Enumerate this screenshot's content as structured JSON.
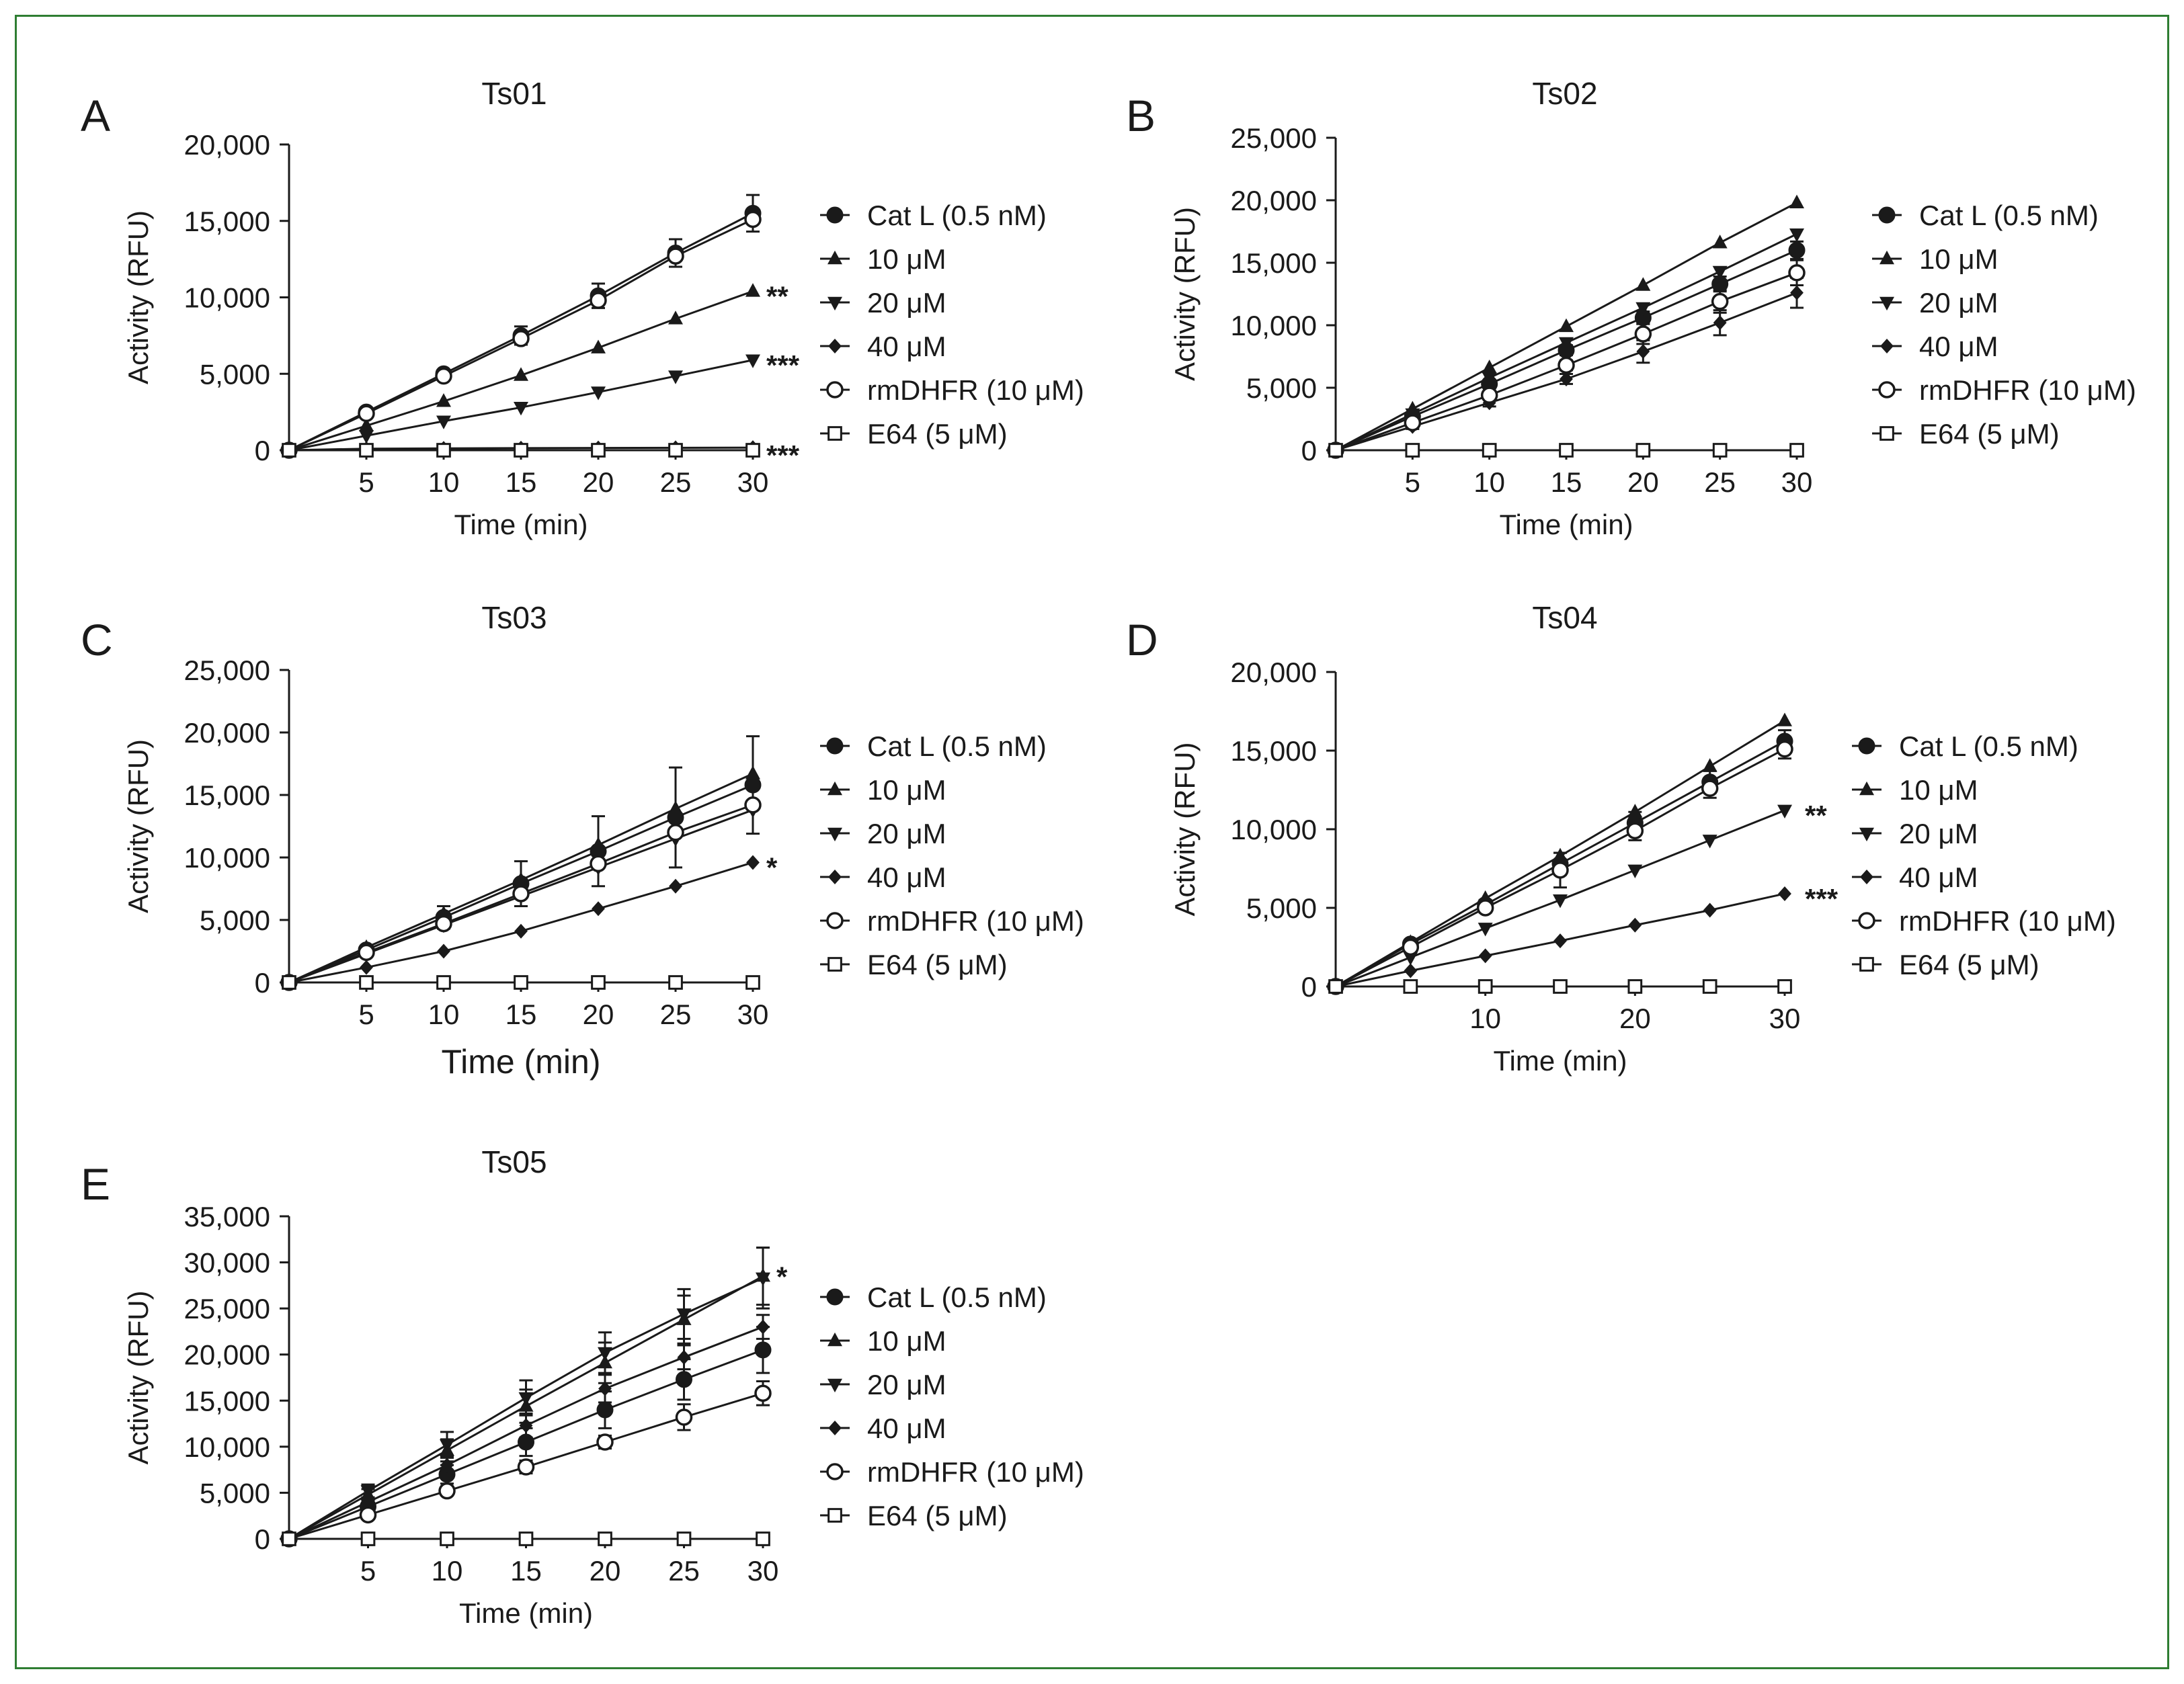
{
  "figure_border_color": "#2e7d32",
  "legend_labels": [
    "Cat L (0.5 nM)",
    "10 μM",
    "20 μM",
    "40 μM",
    "rmDHFR (10 μM)",
    "E64 (5 μM)"
  ],
  "legend_markers": [
    "filled-circle",
    "filled-triangle-up",
    "filled-triangle-down",
    "filled-diamond",
    "open-circle",
    "open-square"
  ],
  "chart_data": [
    {
      "panel": "A",
      "title": "Ts01",
      "type": "line",
      "xlabel": "Time (min)",
      "ylabel": "Activity (RFU)",
      "xlim": [
        0,
        30
      ],
      "xticks": [
        "5",
        "10",
        "15",
        "20",
        "25",
        "30"
      ],
      "xtick_values": [
        5,
        10,
        15,
        20,
        25,
        30
      ],
      "ylim": [
        0,
        20000
      ],
      "yticks": [
        "0",
        "5,000",
        "10,000",
        "15,000",
        "20,000"
      ],
      "ytick_values": [
        0,
        5000,
        10000,
        15000,
        20000
      ],
      "x": [
        0,
        5,
        10,
        15,
        20,
        25,
        30
      ],
      "series": [
        {
          "name": "Cat L (0.5 nM)",
          "values": [
            0,
            2500,
            5000,
            7500,
            10100,
            12900,
            15500
          ],
          "err": [
            0,
            150,
            200,
            600,
            800,
            900,
            1200
          ]
        },
        {
          "name": "10 μM",
          "values": [
            0,
            1600,
            3200,
            4900,
            6700,
            8600,
            10400
          ],
          "err": [
            0,
            0,
            0,
            0,
            0,
            0,
            0
          ]
        },
        {
          "name": "20 μM",
          "values": [
            0,
            950,
            1900,
            2800,
            3800,
            4850,
            5900
          ],
          "err": [
            0,
            0,
            0,
            0,
            0,
            0,
            0
          ]
        },
        {
          "name": "40 μM",
          "values": [
            0,
            100,
            120,
            140,
            150,
            160,
            170
          ],
          "err": [
            0,
            0,
            0,
            0,
            0,
            0,
            0
          ]
        },
        {
          "name": "rmDHFR (10 μM)",
          "values": [
            0,
            2400,
            4850,
            7300,
            9800,
            12700,
            15100
          ],
          "err": [
            0,
            0,
            0,
            0,
            0,
            0,
            0
          ]
        },
        {
          "name": "E64 (5 μM)",
          "values": [
            0,
            0,
            0,
            0,
            0,
            0,
            0
          ],
          "err": [
            0,
            0,
            0,
            0,
            0,
            0,
            0
          ]
        }
      ],
      "annotations": [
        {
          "text": "**",
          "x": 30,
          "y": 10400
        },
        {
          "text": "***",
          "x": 30,
          "y": 5900
        },
        {
          "text": "***",
          "x": 30,
          "y": 0
        }
      ]
    },
    {
      "panel": "B",
      "title": "Ts02",
      "type": "line",
      "xlabel": "Time (min)",
      "ylabel": "Activity (RFU)",
      "xlim": [
        0,
        30
      ],
      "xticks": [
        "5",
        "10",
        "15",
        "20",
        "25",
        "30"
      ],
      "xtick_values": [
        5,
        10,
        15,
        20,
        25,
        30
      ],
      "ylim": [
        0,
        25000
      ],
      "yticks": [
        "0",
        "5,000",
        "10,000",
        "15,000",
        "20,000",
        "25,000"
      ],
      "ytick_values": [
        0,
        5000,
        10000,
        15000,
        20000,
        25000
      ],
      "x": [
        0,
        5,
        10,
        15,
        20,
        25,
        30
      ],
      "series": [
        {
          "name": "Cat L (0.5 nM)",
          "values": [
            0,
            2700,
            5300,
            8000,
            10600,
            13300,
            16000
          ],
          "err": [
            0,
            200,
            300,
            400,
            500,
            600,
            700
          ]
        },
        {
          "name": "10 μM",
          "values": [
            0,
            3300,
            6600,
            9900,
            13200,
            16600,
            19800
          ],
          "err": [
            0,
            0,
            0,
            0,
            0,
            0,
            0
          ]
        },
        {
          "name": "20 μM",
          "values": [
            0,
            2900,
            5800,
            8600,
            11400,
            14300,
            17300
          ],
          "err": [
            0,
            0,
            0,
            0,
            0,
            0,
            0
          ]
        },
        {
          "name": "40 μM",
          "values": [
            0,
            1900,
            3800,
            5700,
            7900,
            10200,
            12600
          ],
          "err": [
            0,
            200,
            300,
            400,
            900,
            1000,
            1200
          ]
        },
        {
          "name": "rmDHFR (10 μM)",
          "values": [
            0,
            2200,
            4400,
            6800,
            9300,
            11900,
            14200
          ],
          "err": [
            0,
            200,
            300,
            400,
            800,
            900,
            1000
          ]
        },
        {
          "name": "E64 (5 μM)",
          "values": [
            0,
            0,
            0,
            0,
            0,
            0,
            0
          ],
          "err": [
            0,
            0,
            0,
            0,
            0,
            0,
            0
          ]
        }
      ],
      "annotations": []
    },
    {
      "panel": "C",
      "title": "Ts03",
      "type": "line",
      "xlabel": "Time (min)",
      "ylabel": "Activity (RFU)",
      "xlim": [
        0,
        30
      ],
      "xticks": [
        "5",
        "10",
        "15",
        "20",
        "25",
        "30"
      ],
      "xtick_values": [
        5,
        10,
        15,
        20,
        25,
        30
      ],
      "ylim": [
        0,
        25000
      ],
      "yticks": [
        "0",
        "5,000",
        "10,000",
        "15,000",
        "20,000",
        "25,000"
      ],
      "ytick_values": [
        0,
        5000,
        10000,
        15000,
        20000,
        25000
      ],
      "x": [
        0,
        5,
        10,
        15,
        20,
        25,
        30
      ],
      "series": [
        {
          "name": "Cat L (0.5 nM)",
          "values": [
            0,
            2600,
            5200,
            7900,
            10500,
            13200,
            15800
          ],
          "err": [
            0,
            300,
            900,
            1800,
            2800,
            4000,
            3900
          ]
        },
        {
          "name": "10 μM",
          "values": [
            0,
            2800,
            5500,
            8200,
            11000,
            13900,
            16700
          ],
          "err": [
            0,
            0,
            0,
            0,
            0,
            0,
            0
          ]
        },
        {
          "name": "20 μM",
          "values": [
            0,
            2300,
            4600,
            6900,
            9200,
            11500,
            13800
          ],
          "err": [
            0,
            0,
            0,
            0,
            0,
            0,
            0
          ]
        },
        {
          "name": "40 μM",
          "values": [
            0,
            1200,
            2500,
            4100,
            5900,
            7700,
            9600
          ],
          "err": [
            0,
            0,
            0,
            0,
            0,
            0,
            0
          ]
        },
        {
          "name": "rmDHFR (10 μM)",
          "values": [
            0,
            2400,
            4700,
            7100,
            9500,
            12000,
            14200
          ],
          "err": [
            0,
            0,
            0,
            0,
            0,
            0,
            0
          ]
        },
        {
          "name": "E64 (5 μM)",
          "values": [
            0,
            0,
            0,
            0,
            0,
            0,
            0
          ],
          "err": [
            0,
            0,
            0,
            0,
            0,
            0,
            0
          ]
        }
      ],
      "annotations": [
        {
          "text": "*",
          "x": 30,
          "y": 9600
        }
      ]
    },
    {
      "panel": "D",
      "title": "Ts04",
      "type": "line",
      "xlabel": "Time (min)",
      "ylabel": "Activity (RFU)",
      "xlim": [
        0,
        30
      ],
      "xticks": [
        "10",
        "20",
        "30"
      ],
      "xtick_values": [
        10,
        20,
        30
      ],
      "ylim": [
        0,
        20000
      ],
      "yticks": [
        "0",
        "5,000",
        "10,000",
        "15,000",
        "20,000"
      ],
      "ytick_values": [
        0,
        5000,
        10000,
        15000,
        20000
      ],
      "x": [
        0,
        5,
        10,
        15,
        20,
        25,
        30
      ],
      "series": [
        {
          "name": "Cat L (0.5 nM)",
          "values": [
            0,
            2700,
            5200,
            7800,
            10400,
            13000,
            15600
          ],
          "err": [
            0,
            150,
            300,
            700,
            700,
            700,
            700
          ]
        },
        {
          "name": "10 μM",
          "values": [
            0,
            2800,
            5600,
            8300,
            11100,
            14000,
            16900
          ],
          "err": [
            0,
            0,
            0,
            0,
            0,
            0,
            0
          ]
        },
        {
          "name": "20 μM",
          "values": [
            0,
            1850,
            3700,
            5500,
            7400,
            9300,
            11200
          ],
          "err": [
            0,
            0,
            0,
            0,
            0,
            0,
            0
          ]
        },
        {
          "name": "40 μM",
          "values": [
            0,
            1000,
            1950,
            2900,
            3900,
            4850,
            5900
          ],
          "err": [
            0,
            0,
            0,
            0,
            0,
            0,
            0
          ]
        },
        {
          "name": "rmDHFR (10 μM)",
          "values": [
            0,
            2500,
            5000,
            7400,
            9900,
            12600,
            15100
          ],
          "err": [
            0,
            200,
            300,
            1100,
            600,
            600,
            600
          ]
        },
        {
          "name": "E64 (5 μM)",
          "values": [
            0,
            0,
            0,
            0,
            0,
            0,
            0
          ],
          "err": [
            0,
            0,
            0,
            0,
            0,
            0,
            0
          ]
        }
      ],
      "annotations": [
        {
          "text": "**",
          "x": 30,
          "y": 11200
        },
        {
          "text": "***",
          "x": 30,
          "y": 5900
        }
      ]
    },
    {
      "panel": "E",
      "title": "Ts05",
      "type": "line",
      "xlabel": "Time (min)",
      "ylabel": "Activity (RFU)",
      "xlim": [
        0,
        30
      ],
      "xticks": [
        "5",
        "10",
        "15",
        "20",
        "25",
        "30"
      ],
      "xtick_values": [
        5,
        10,
        15,
        20,
        25,
        30
      ],
      "ylim": [
        0,
        35000
      ],
      "yticks": [
        "0",
        "5,000",
        "10,000",
        "15,000",
        "20,000",
        "25,000",
        "30,000",
        "35,000"
      ],
      "ytick_values": [
        0,
        5000,
        10000,
        15000,
        20000,
        25000,
        30000,
        35000
      ],
      "x": [
        0,
        5,
        10,
        15,
        20,
        25,
        30
      ],
      "series": [
        {
          "name": "Cat L (0.5 nM)",
          "values": [
            0,
            3500,
            7000,
            10500,
            14000,
            17300,
            20500
          ],
          "err": [
            0,
            500,
            1000,
            1500,
            2000,
            2200,
            2500
          ]
        },
        {
          "name": "10 μM",
          "values": [
            0,
            4800,
            9600,
            14400,
            19100,
            23800,
            28500
          ],
          "err": [
            0,
            600,
            1200,
            1800,
            2200,
            2600,
            3100
          ]
        },
        {
          "name": "20 μM",
          "values": [
            0,
            5200,
            10200,
            15300,
            20200,
            24400,
            28300
          ],
          "err": [
            0,
            700,
            1400,
            1900,
            2200,
            2700,
            3300
          ]
        },
        {
          "name": "40 μM",
          "values": [
            0,
            4000,
            8000,
            12300,
            16300,
            19700,
            23000
          ],
          "err": [
            0,
            500,
            900,
            1300,
            1500,
            1300,
            1300
          ]
        },
        {
          "name": "rmDHFR (10 μM)",
          "values": [
            0,
            2600,
            5200,
            7800,
            10500,
            13200,
            15800
          ],
          "err": [
            0,
            300,
            500,
            700,
            700,
            1400,
            1300
          ]
        },
        {
          "name": "E64 (5 μM)",
          "values": [
            0,
            0,
            0,
            0,
            0,
            0,
            0
          ],
          "err": [
            0,
            0,
            0,
            0,
            0,
            0,
            0
          ]
        }
      ],
      "annotations": [
        {
          "text": "*",
          "x": 30,
          "y": 29000
        }
      ]
    }
  ]
}
